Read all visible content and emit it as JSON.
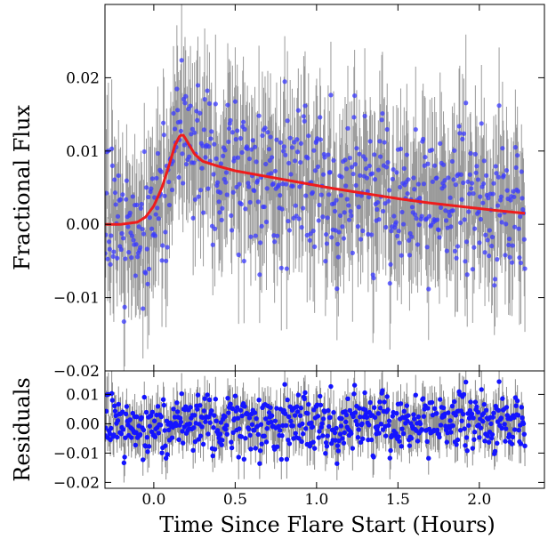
{
  "chart_data": [
    {
      "type": "scatter",
      "panel": "main",
      "ylabel": "Fractional Flux",
      "xlim": [
        -0.3,
        2.4
      ],
      "ylim": [
        -0.02,
        0.03
      ],
      "yticks": [
        -0.02,
        -0.01,
        0.0,
        0.01,
        0.02
      ],
      "ytick_labels": [
        "−0.02",
        "−0.01",
        "0.00",
        "0.01",
        "0.02"
      ],
      "grid": false,
      "colors": {
        "points": "#3a3aff",
        "errorbars": "#9a9a9a",
        "model": "#ee1c1c"
      },
      "series": [
        {
          "kind": "points_with_errorbars",
          "x_range": [
            -0.3,
            2.28
          ],
          "n_points": 620,
          "typical_y_error": 0.0075
        },
        {
          "kind": "model_line",
          "x": [
            -0.3,
            -0.2,
            -0.1,
            -0.05,
            0.0,
            0.05,
            0.1,
            0.13,
            0.16,
            0.18,
            0.2,
            0.25,
            0.3,
            0.4,
            0.5,
            0.7,
            0.9,
            1.1,
            1.3,
            1.5,
            1.7,
            1.9,
            2.1,
            2.28
          ],
          "y": [
            0.0,
            0.0,
            0.0003,
            0.001,
            0.0025,
            0.005,
            0.0085,
            0.0108,
            0.0121,
            0.0122,
            0.0115,
            0.0096,
            0.0086,
            0.0079,
            0.0073,
            0.0065,
            0.0057,
            0.0049,
            0.0042,
            0.0035,
            0.0029,
            0.0024,
            0.0019,
            0.0015
          ]
        }
      ]
    },
    {
      "type": "scatter",
      "panel": "residuals",
      "ylabel": "Residuals",
      "xlabel": "Time Since Flare Start (Hours)",
      "xlim": [
        -0.3,
        2.4
      ],
      "ylim": [
        -0.022,
        0.018
      ],
      "xticks": [
        0.0,
        0.5,
        1.0,
        1.5,
        2.0
      ],
      "xtick_labels": [
        "0.0",
        "0.5",
        "1.0",
        "1.5",
        "2.0"
      ],
      "yticks": [
        -0.02,
        -0.01,
        0.0,
        0.01
      ],
      "ytick_labels": [
        "−0.02",
        "−0.01",
        "0.00",
        "0.01"
      ],
      "grid": false,
      "colors": {
        "points": "#1414ff",
        "errorbars": "#8a8a8a"
      },
      "series": [
        {
          "kind": "points_with_errorbars",
          "x_range": [
            -0.3,
            2.28
          ],
          "n_points": 620,
          "typical_y_error": 0.0075
        }
      ]
    }
  ]
}
